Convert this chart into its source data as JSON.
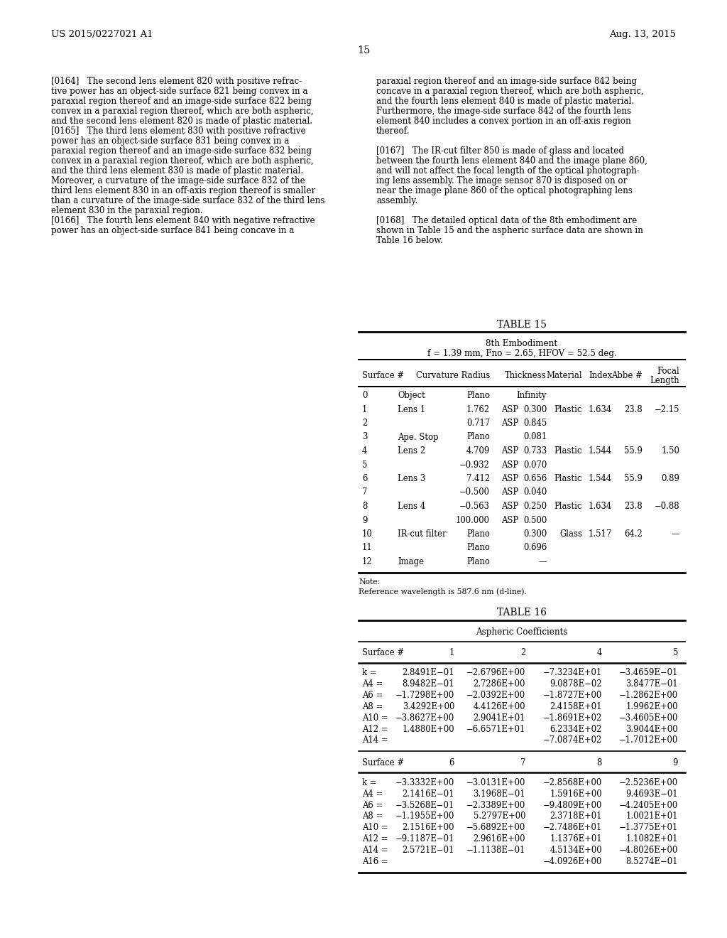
{
  "page_number": "15",
  "patent_number": "US 2015/0227021 A1",
  "patent_date": "Aug. 13, 2015",
  "table15_title": "TABLE 15",
  "table15_subtitle1": "8th Embodiment",
  "table15_subtitle2": "f = 1.39 mm, Fno = 2.65, HFOV = 52.5 deg.",
  "table15_note": "Note:",
  "table15_ref": "Reference wavelength is 587.6 nm (d-line).",
  "table16_title": "TABLE 16",
  "table16_subtitle": "Aspheric Coefficients",
  "table16_rows1": [
    [
      "k =",
      "2.8491E−01",
      "−2.6796E+00",
      "−7.3234E+01",
      "−3.4659E−01"
    ],
    [
      "A4 =",
      "8.9482E−01",
      "2.7286E+00",
      "9.0878E−02",
      "3.8477E−01"
    ],
    [
      "A6 =",
      "−1.7298E+00",
      "−2.0392E+00",
      "−1.8727E+00",
      "−1.2862E+00"
    ],
    [
      "A8 =",
      "3.4292E+00",
      "4.4126E+00",
      "2.4158E+01",
      "1.9962E+00"
    ],
    [
      "A10 =",
      "−3.8627E+00",
      "2.9041E+01",
      "−1.8691E+02",
      "−3.4605E+00"
    ],
    [
      "A12 =",
      "1.4880E+00",
      "−6.6571E+01",
      "6.2334E+02",
      "3.9044E+00"
    ],
    [
      "A14 =",
      "",
      "",
      "−7.0874E+02",
      "−1.7012E+00"
    ]
  ],
  "table16_rows2": [
    [
      "k =",
      "−3.3332E+00",
      "−3.0131E+00",
      "−2.8568E+00",
      "−2.5236E+00"
    ],
    [
      "A4 =",
      "2.1416E−01",
      "3.1968E−01",
      "1.5916E+00",
      "9.4693E−01"
    ],
    [
      "A6 =",
      "−3.5268E−01",
      "−2.3389E+00",
      "−9.4809E+00",
      "−4.2405E+00"
    ],
    [
      "A8 =",
      "−1.1955E+00",
      "5.2797E+00",
      "2.3718E+01",
      "1.0021E+01"
    ],
    [
      "A10 =",
      "2.1516E+00",
      "−5.6892E+00",
      "−2.7486E+01",
      "−1.3775E+01"
    ],
    [
      "A12 =",
      "−9.1187E−01",
      "2.9616E+00",
      "1.1376E+01",
      "1.1082E+01"
    ],
    [
      "A14 =",
      "2.5721E−01",
      "−1.1138E−01",
      "4.5134E+00",
      "−4.8026E+00"
    ],
    [
      "A16 =",
      "",
      "",
      "−4.0926E+00",
      "8.5274E−01"
    ]
  ]
}
